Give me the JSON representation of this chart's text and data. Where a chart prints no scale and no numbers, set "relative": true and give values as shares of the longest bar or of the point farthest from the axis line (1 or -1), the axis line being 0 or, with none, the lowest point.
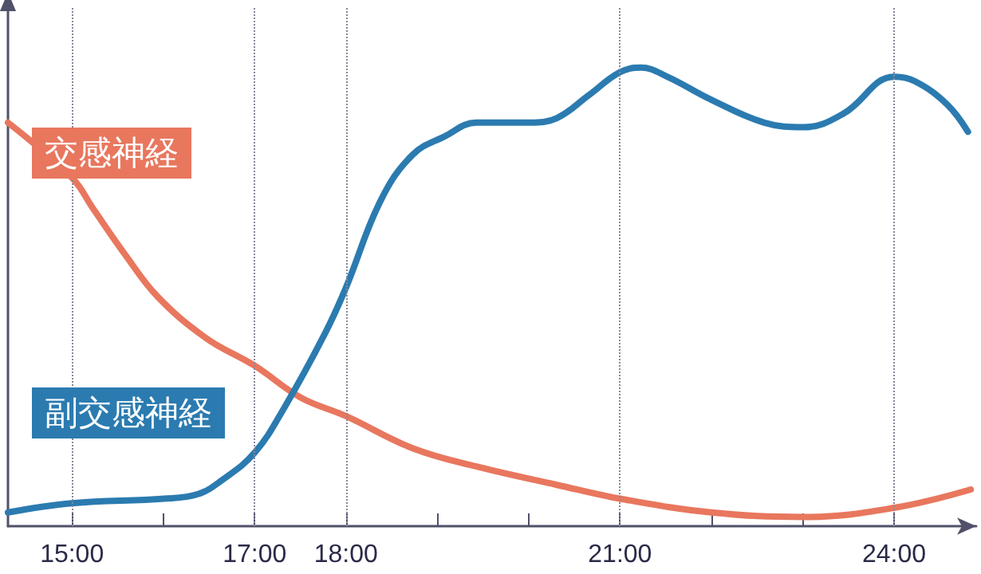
{
  "chart_data": {
    "type": "line",
    "relative": true,
    "xlim": [
      14.3,
      24.9
    ],
    "xticks": [
      {
        "value": 15,
        "label": "15:00"
      },
      {
        "value": 16,
        "label": null
      },
      {
        "value": 17,
        "label": "17:00"
      },
      {
        "value": 18,
        "label": "18:00"
      },
      {
        "value": 19,
        "label": null
      },
      {
        "value": 20,
        "label": null
      },
      {
        "value": 21,
        "label": "21:00"
      },
      {
        "value": 22,
        "label": null
      },
      {
        "value": 23,
        "label": null
      },
      {
        "value": 24,
        "label": "24:00"
      }
    ],
    "grid": false,
    "legend": false,
    "marker": "none",
    "line_style": "solid",
    "ref_lines": [
      {
        "axis": "x",
        "value": 15,
        "color": "#888899",
        "line_style": "dotted"
      },
      {
        "axis": "x",
        "value": 17,
        "color": "#888899",
        "line_style": "dotted"
      },
      {
        "axis": "x",
        "value": 18,
        "color": "#888899",
        "line_style": "dotted"
      },
      {
        "axis": "x",
        "value": 21,
        "color": "#888899",
        "line_style": "dotted"
      },
      {
        "axis": "x",
        "value": 24,
        "color": "#888899",
        "line_style": "dotted"
      }
    ],
    "series": [
      {
        "name": "交感神経",
        "color": "#e8775e",
        "x": [
          14.3,
          15,
          15.24,
          15.59,
          15.94,
          16.47,
          17,
          17.51,
          18,
          18.73,
          19.43,
          20.31,
          21,
          22,
          23.01,
          24,
          24.84
        ],
        "values": [
          0.88,
          0.76,
          0.69,
          0.59,
          0.5,
          0.41,
          0.35,
          0.28,
          0.24,
          0.17,
          0.13,
          0.09,
          0.06,
          0.03,
          0.02,
          0.04,
          0.08
        ]
      },
      {
        "name": "副交感神経",
        "color": "#2b7bb0",
        "x": [
          14.3,
          15,
          16.01,
          16.38,
          16.64,
          17,
          17.33,
          17.77,
          18,
          18.38,
          18.73,
          19.08,
          19.43,
          20.01,
          20.31,
          20.66,
          21,
          21.23,
          21.52,
          22,
          22.58,
          23.01,
          23.45,
          24,
          24.23,
          24.58,
          24.81
        ],
        "values": [
          0.03,
          0.05,
          0.06,
          0.07,
          0.1,
          0.16,
          0.26,
          0.42,
          0.52,
          0.71,
          0.81,
          0.85,
          0.88,
          0.88,
          0.89,
          0.94,
          0.99,
          1.0,
          0.98,
          0.93,
          0.88,
          0.87,
          0.9,
          0.98,
          0.97,
          0.92,
          0.86
        ]
      }
    ]
  }
}
